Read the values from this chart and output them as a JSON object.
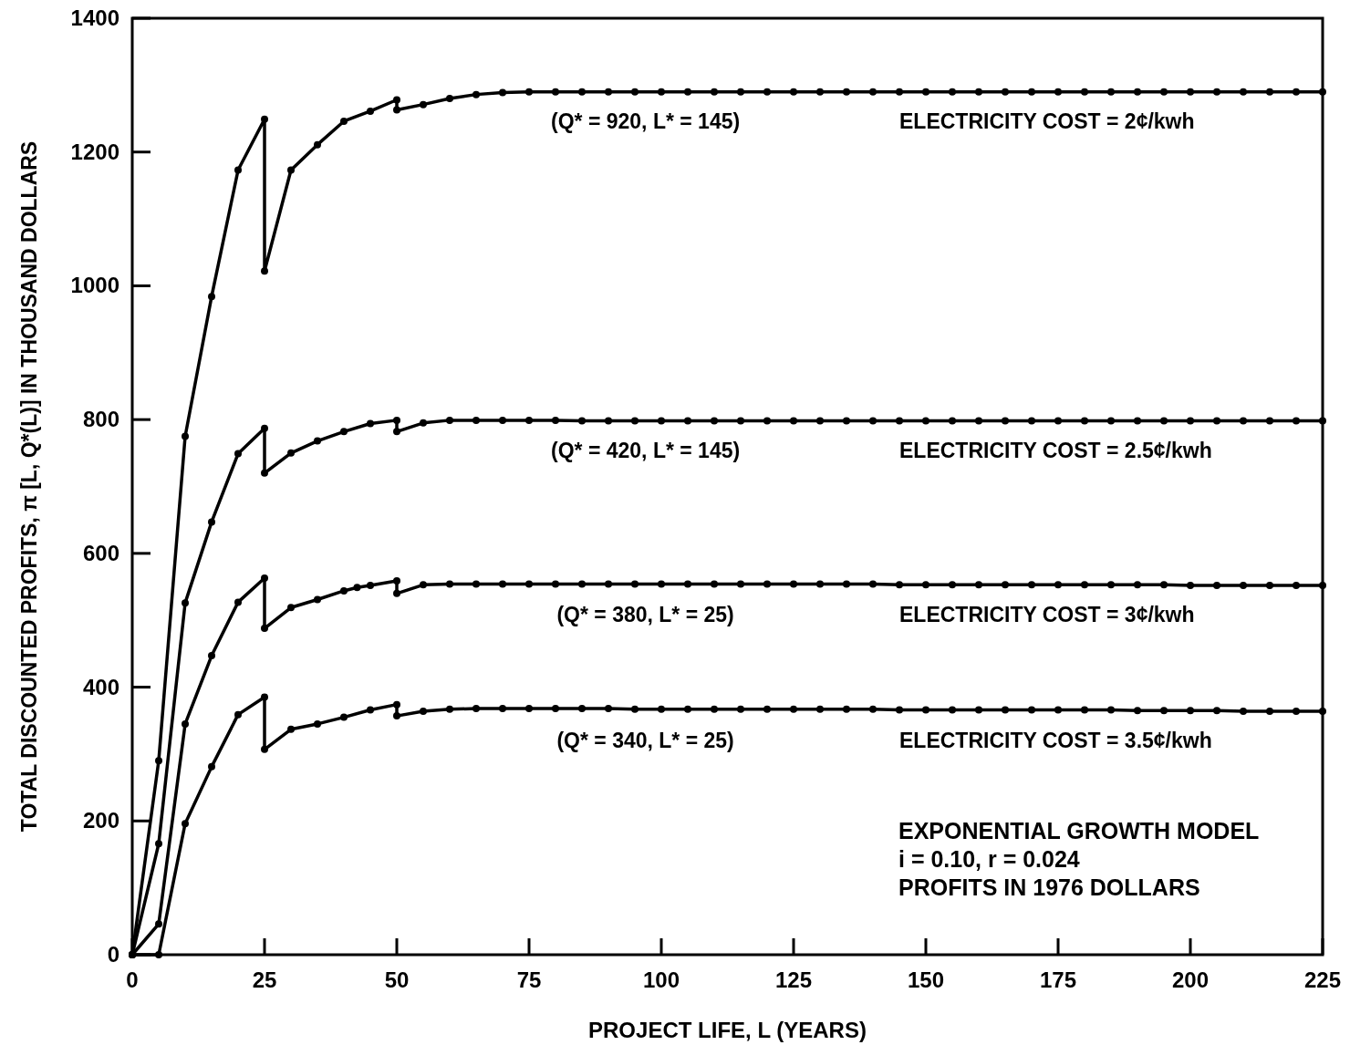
{
  "chart_data": {
    "type": "line",
    "xlabel": "PROJECT LIFE, L (YEARS)",
    "ylabel": "TOTAL DISCOUNTED PROFITS, π [L, Q*(L)] IN THOUSAND DOLLARS",
    "xlim": [
      0,
      225
    ],
    "xticks": [
      0,
      25,
      50,
      75,
      100,
      125,
      150,
      175,
      200,
      225
    ],
    "ylim": [
      0,
      1400
    ],
    "yticks": [
      0,
      200,
      400,
      600,
      800,
      1000,
      1200,
      1400
    ],
    "grid": false,
    "marker": "circle",
    "line_style": "solid",
    "series": [
      {
        "name": "ELECTRICITY COST = 2¢/kwh",
        "color": "#000000",
        "x": [
          0,
          5,
          10,
          15,
          20,
          25,
          25,
          30,
          35,
          40,
          45,
          50,
          50,
          55,
          60,
          65,
          70,
          75,
          80,
          85,
          90,
          95,
          100,
          105,
          110,
          115,
          120,
          125,
          130,
          135,
          140,
          145,
          150,
          155,
          160,
          165,
          170,
          175,
          180,
          185,
          190,
          195,
          200,
          205,
          210,
          215,
          220,
          225
        ],
        "values": [
          0,
          290,
          775,
          984,
          1173,
          1249,
          1022,
          1173,
          1211,
          1246,
          1261,
          1278,
          1263,
          1271,
          1280,
          1286,
          1289,
          1290,
          1290,
          1290,
          1290,
          1290,
          1290,
          1290,
          1290,
          1290,
          1290,
          1290,
          1290,
          1290,
          1290,
          1290,
          1290,
          1290,
          1290,
          1290,
          1290,
          1290,
          1290,
          1290,
          1290,
          1290,
          1290,
          1290,
          1290,
          1290,
          1290,
          1290
        ]
      },
      {
        "name": "ELECTRICITY COST = 2.5¢/kwh",
        "color": "#000000",
        "x": [
          0,
          5,
          10,
          15,
          20,
          25,
          25,
          30,
          35,
          40,
          45,
          50,
          50,
          55,
          60,
          65,
          70,
          75,
          80,
          85,
          90,
          95,
          100,
          105,
          110,
          115,
          120,
          125,
          130,
          135,
          140,
          145,
          150,
          155,
          160,
          165,
          170,
          175,
          180,
          185,
          190,
          195,
          200,
          205,
          210,
          215,
          220,
          225
        ],
        "values": [
          0,
          166,
          526,
          647,
          749,
          787,
          720,
          750,
          768,
          782,
          794,
          799,
          782,
          795,
          799,
          799,
          799,
          799,
          799,
          798,
          798,
          798,
          798,
          798,
          798,
          798,
          798,
          798,
          798,
          798,
          798,
          798,
          798,
          798,
          798,
          798,
          798,
          798,
          798,
          798,
          798,
          798,
          798,
          798,
          798,
          798,
          798,
          798
        ]
      },
      {
        "name": "ELECTRICITY COST = 3¢/kwh",
        "color": "#000000",
        "x": [
          0,
          5,
          10,
          15,
          20,
          25,
          25,
          30,
          35,
          40,
          42.5,
          45,
          50,
          50,
          55,
          60,
          65,
          70,
          75,
          80,
          85,
          90,
          95,
          100,
          105,
          110,
          115,
          120,
          125,
          130,
          135,
          140,
          145,
          150,
          155,
          160,
          165,
          170,
          175,
          180,
          185,
          190,
          195,
          200,
          205,
          210,
          215,
          220,
          225
        ],
        "values": [
          0,
          46,
          345,
          447,
          527,
          563,
          488,
          519,
          531,
          544,
          549,
          552,
          559,
          540,
          553,
          554,
          554,
          554,
          554,
          554,
          554,
          554,
          554,
          554,
          554,
          554,
          554,
          554,
          554,
          554,
          554,
          554,
          553,
          553,
          553,
          553,
          553,
          553,
          553,
          553,
          553,
          553,
          553,
          552,
          552,
          552,
          552,
          552,
          552
        ]
      },
      {
        "name": "ELECTRICITY COST = 3.5¢/kwh",
        "color": "#000000",
        "x": [
          0,
          5,
          10,
          15,
          20,
          25,
          25,
          30,
          35,
          40,
          45,
          50,
          50,
          55,
          60,
          65,
          70,
          75,
          80,
          85,
          90,
          95,
          100,
          105,
          110,
          115,
          120,
          125,
          130,
          135,
          140,
          145,
          150,
          155,
          160,
          165,
          170,
          175,
          180,
          185,
          190,
          195,
          200,
          205,
          210,
          215,
          220,
          225
        ],
        "values": [
          0,
          0,
          196,
          281,
          359,
          385,
          307,
          337,
          345,
          355,
          366,
          374,
          357,
          364,
          367,
          368,
          368,
          368,
          368,
          368,
          368,
          367,
          367,
          367,
          367,
          367,
          367,
          367,
          367,
          367,
          367,
          366,
          366,
          366,
          366,
          366,
          366,
          366,
          366,
          366,
          365,
          365,
          365,
          365,
          364,
          364,
          364,
          364
        ]
      }
    ],
    "annotations": [
      "(Q* = 920, L* = 145)",
      "(Q* = 420, L* = 145)",
      "(Q* = 380, L* = 25)",
      "(Q* = 340, L* = 25)",
      "EXPONENTIAL GROWTH MODEL",
      "i = 0.10, r = 0.024",
      "PROFITS IN 1976 DOLLARS"
    ]
  }
}
